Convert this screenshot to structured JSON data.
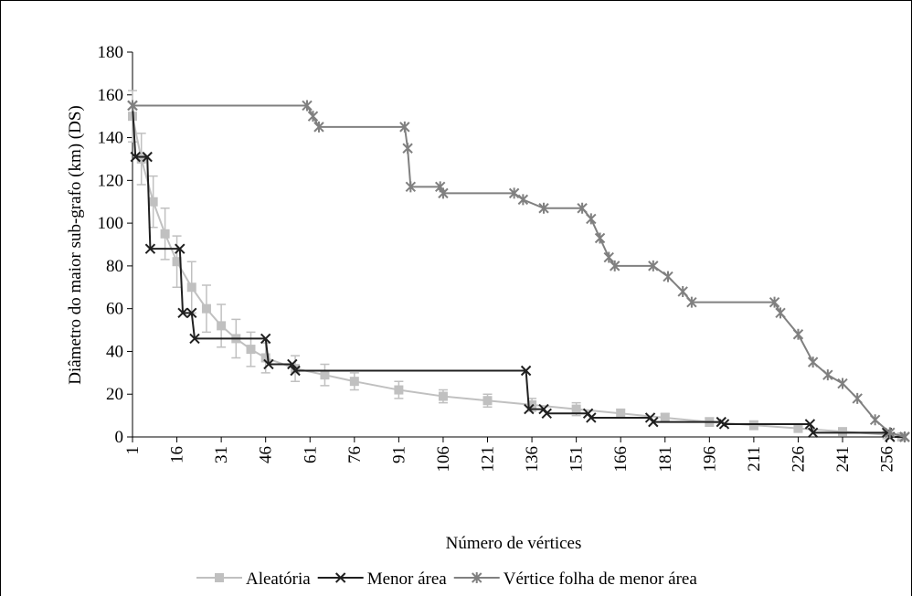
{
  "chart_data": {
    "type": "line",
    "xlabel": "Número de vértices",
    "ylabel": "Diâmetro do maior sub-grafo (km) (DS)",
    "xlim": [
      1,
      262
    ],
    "ylim": [
      0,
      180
    ],
    "xticks": [
      1,
      16,
      31,
      46,
      61,
      76,
      91,
      106,
      121,
      136,
      151,
      166,
      181,
      196,
      211,
      226,
      241,
      256
    ],
    "yticks": [
      0,
      20,
      40,
      60,
      80,
      100,
      120,
      140,
      160,
      180
    ],
    "grid": false,
    "legend": "bottom",
    "series": [
      {
        "name": "Aleatória",
        "color": "#c0c0c0",
        "marker": "square",
        "x": [
          1,
          4,
          8,
          12,
          16,
          21,
          26,
          31,
          36,
          41,
          46,
          56,
          66,
          76,
          91,
          106,
          121,
          136,
          151,
          166,
          181,
          196,
          211,
          226,
          241,
          256,
          261
        ],
        "values": [
          150,
          130,
          110,
          95,
          82,
          70,
          60,
          52,
          46,
          41,
          37,
          32,
          29,
          26,
          22,
          19,
          17,
          15,
          13,
          11,
          9,
          7,
          5.5,
          4,
          2.5,
          1,
          0
        ],
        "errors": [
          12,
          12,
          12,
          12,
          12,
          12,
          11,
          10,
          9,
          8,
          7,
          6,
          5,
          4,
          4,
          3,
          3,
          3,
          3,
          2,
          2,
          2,
          2,
          1,
          1,
          1,
          0
        ]
      },
      {
        "name": "Menor área",
        "color": "#202020",
        "marker": "x",
        "x": [
          1,
          2,
          6,
          7,
          17,
          18,
          21,
          22,
          46,
          47,
          55,
          56,
          134,
          135,
          140,
          141,
          155,
          156,
          176,
          177,
          200,
          201,
          230,
          231,
          256,
          257,
          262
        ],
        "values": [
          155,
          131,
          131,
          88,
          88,
          58,
          58,
          46,
          46,
          34,
          34,
          31,
          31,
          13,
          13,
          11,
          11,
          9,
          9,
          7,
          7,
          6,
          6,
          2,
          2,
          0,
          0
        ]
      },
      {
        "name": "Vértice folha de menor área",
        "color": "#808080",
        "marker": "star",
        "x": [
          1,
          60,
          62,
          64,
          93,
          94,
          95,
          105,
          106,
          130,
          133,
          140,
          153,
          156,
          159,
          162,
          164,
          177,
          182,
          187,
          190,
          218,
          220,
          226,
          231,
          236,
          241,
          246,
          252,
          257,
          262
        ],
        "values": [
          155,
          155,
          150,
          145,
          145,
          135,
          117,
          117,
          114,
          114,
          111,
          107,
          107,
          102,
          93,
          84,
          80,
          80,
          75,
          68,
          63,
          63,
          58,
          48,
          35,
          29,
          25,
          18,
          8,
          2,
          0
        ]
      }
    ]
  }
}
